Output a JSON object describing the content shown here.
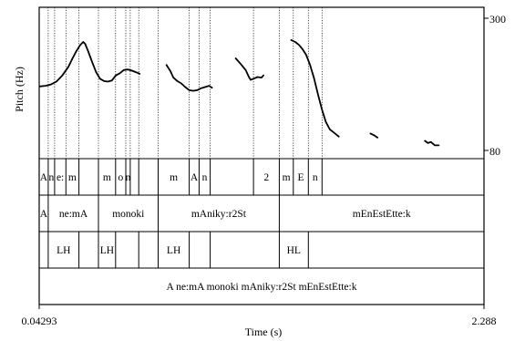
{
  "chart_data": {
    "type": "line",
    "title": "",
    "xlabel": "Time (s)",
    "ylabel": "Pitch (Hz)",
    "xlim": [
      0.04293,
      2.288
    ],
    "ylim": [
      80,
      300
    ],
    "x_tick_labels": [
      "0.04293",
      "2.288"
    ],
    "y_tick_labels": [
      "300",
      "80"
    ],
    "grid": false,
    "series": [
      {
        "segments": [
          [
            [
              0.045,
              153
            ],
            [
              0.075,
              154
            ],
            [
              0.1,
              156
            ],
            [
              0.13,
              161
            ],
            [
              0.16,
              172
            ],
            [
              0.19,
              188
            ],
            [
              0.21,
              205
            ],
            [
              0.23,
              222
            ],
            [
              0.25,
              237
            ],
            [
              0.265,
              245
            ],
            [
              0.275,
              240
            ],
            [
              0.29,
              222
            ],
            [
              0.31,
              198
            ],
            [
              0.33,
              178
            ],
            [
              0.35,
              166
            ],
            [
              0.37,
              162
            ],
            [
              0.39,
              161
            ],
            [
              0.41,
              163
            ],
            [
              0.43,
              172
            ],
            [
              0.45,
              176
            ],
            [
              0.47,
              182
            ],
            [
              0.49,
              183
            ],
            [
              0.51,
              181
            ],
            [
              0.53,
              178
            ],
            [
              0.55,
              175
            ]
          ],
          [
            [
              0.685,
              192
            ],
            [
              0.705,
              180
            ],
            [
              0.72,
              168
            ],
            [
              0.74,
              162
            ],
            [
              0.76,
              158
            ],
            [
              0.78,
              152
            ],
            [
              0.8,
              147
            ],
            [
              0.82,
              146
            ],
            [
              0.84,
              147
            ],
            [
              0.86,
              150
            ],
            [
              0.88,
              152
            ],
            [
              0.9,
              154
            ],
            [
              0.915,
              151
            ]
          ],
          [
            [
              1.035,
              206
            ],
            [
              1.06,
              194
            ],
            [
              1.085,
              182
            ],
            [
              1.1,
              170
            ],
            [
              1.11,
              164
            ],
            [
              1.125,
              166
            ],
            [
              1.145,
              169
            ],
            [
              1.165,
              168
            ],
            [
              1.175,
              172
            ]
          ],
          [
            [
              1.315,
              250
            ],
            [
              1.335,
              245
            ],
            [
              1.355,
              237
            ],
            [
              1.37,
              228
            ],
            [
              1.39,
              214
            ],
            [
              1.41,
              192
            ],
            [
              1.43,
              167
            ],
            [
              1.45,
              141
            ],
            [
              1.47,
              120
            ],
            [
              1.49,
              105
            ],
            [
              1.51,
              97
            ],
            [
              1.53,
              94
            ],
            [
              1.555,
              90
            ]
          ],
          [
            [
              1.715,
              93
            ],
            [
              1.735,
              91
            ],
            [
              1.75,
              89
            ]
          ],
          [
            [
              1.99,
              86
            ],
            [
              2.005,
              84
            ],
            [
              2.02,
              85
            ],
            [
              2.04,
              82
            ],
            [
              2.06,
              82
            ]
          ]
        ]
      }
    ],
    "boundaries": [
      0.0885,
      0.1205,
      0.1775,
      0.2435,
      0.342,
      0.4285,
      0.48,
      0.5025,
      0.5455,
      0.6435,
      0.8,
      0.85,
      0.906,
      1.1245,
      1.2545,
      1.3255,
      1.4015,
      1.4705
    ],
    "tiers": [
      {
        "name": "segments",
        "boundaries": [
          0.0885,
          0.1205,
          0.1775,
          0.2435,
          0.342,
          0.4285,
          0.48,
          0.5025,
          0.5455,
          0.6435,
          0.8,
          0.85,
          0.906,
          1.1245,
          1.2545,
          1.3255,
          1.4015,
          1.4705
        ],
        "labels": [
          {
            "text": "A",
            "t": 0.0657
          },
          {
            "text": "n",
            "t": 0.1045
          },
          {
            "text": "e:",
            "t": 0.149
          },
          {
            "text": "m",
            "t": 0.2105
          },
          {
            "text": "m",
            "t": 0.3853
          },
          {
            "text": "o",
            "t": 0.4543
          },
          {
            "text": "n",
            "t": 0.4913
          },
          {
            "text": "m",
            "t": 0.7218
          },
          {
            "text": "A",
            "t": 0.825
          },
          {
            "text": "n",
            "t": 0.878
          },
          {
            "text": "2",
            "t": 1.1895
          },
          {
            "text": "m",
            "t": 1.29
          },
          {
            "text": "E",
            "t": 1.3635
          },
          {
            "text": "n",
            "t": 1.436
          }
        ]
      },
      {
        "name": "words",
        "boundaries": [
          0.0885,
          0.342,
          0.6435,
          1.2545
        ],
        "labels": [
          {
            "text": "A",
            "t": 0.0657
          },
          {
            "text": "ne:mA",
            "t": 0.2153
          },
          {
            "text": "monoki",
            "t": 0.4928
          },
          {
            "text": "mAniky:r2St",
            "t": 0.949
          },
          {
            "text": "mEnEstEtte:k",
            "t": 1.7713
          }
        ]
      },
      {
        "name": "tones",
        "boundaries": [
          0.0885,
          0.2435,
          0.342,
          0.4285,
          0.5455,
          0.6435,
          0.8,
          0.906,
          1.2545,
          1.4015
        ],
        "labels": [
          {
            "text": "LH",
            "t": 0.166
          },
          {
            "text": "LH",
            "t": 0.3853
          },
          {
            "text": "LH",
            "t": 0.7218
          },
          {
            "text": "HL",
            "t": 1.328
          }
        ]
      },
      {
        "name": "sentence",
        "boundaries": [],
        "labels": [
          {
            "text": "A ne:mA monoki mAniky:r2St mEnEstEtte:k",
            "t": 1.1655
          }
        ]
      }
    ]
  }
}
